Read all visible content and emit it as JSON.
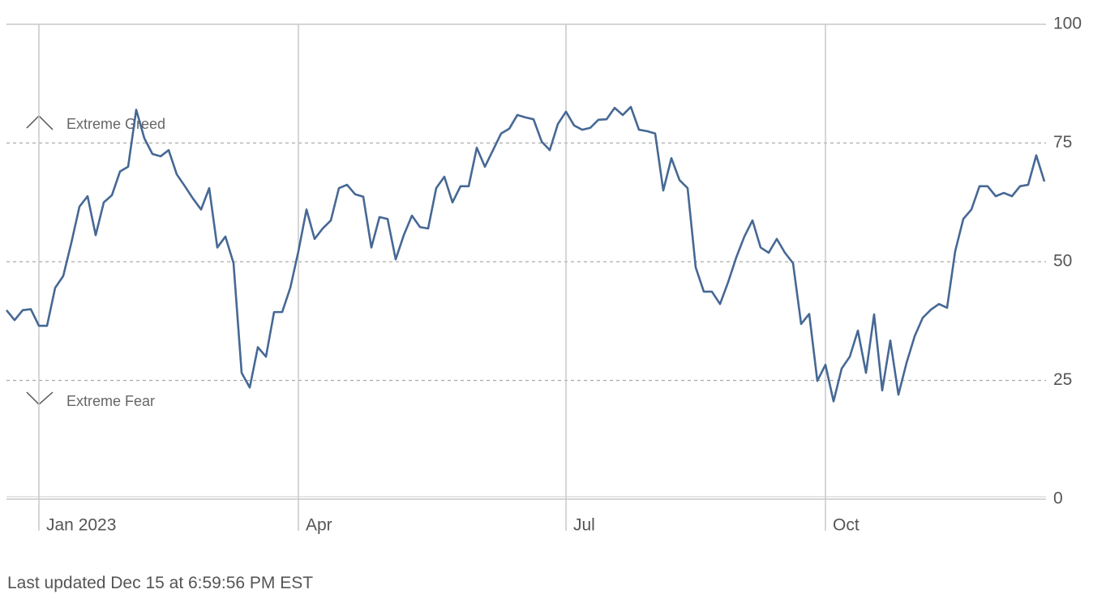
{
  "chart_data": {
    "type": "line",
    "categories": [
      null,
      null,
      null,
      null,
      "Jan 2023",
      null,
      null,
      null,
      null,
      null,
      null,
      null,
      null,
      null,
      null,
      null,
      null,
      null,
      null,
      null,
      null,
      null,
      null,
      null,
      null,
      null,
      null,
      null,
      null,
      null,
      null,
      null,
      null,
      null,
      null,
      null,
      "Apr",
      null,
      null,
      null,
      null,
      null,
      null,
      null,
      null,
      null,
      null,
      null,
      null,
      null,
      null,
      null,
      null,
      null,
      null,
      null,
      null,
      null,
      null,
      null,
      null,
      null,
      null,
      null,
      null,
      null,
      null,
      null,
      null,
      "Jul",
      null,
      null,
      null,
      null,
      null,
      null,
      null,
      null,
      null,
      null,
      null,
      null,
      null,
      null,
      null,
      null,
      null,
      null,
      null,
      null,
      null,
      null,
      null,
      null,
      null,
      null,
      null,
      null,
      null,
      null,
      null,
      "Oct",
      null,
      null,
      null,
      null,
      null,
      null,
      null,
      null,
      null,
      null,
      null,
      null,
      null,
      null,
      null,
      null,
      null,
      null,
      null,
      null,
      null,
      null,
      null,
      null,
      null,
      null,
      null
    ],
    "values": [
      39.8,
      37.7,
      39.8,
      40,
      36.5,
      36.5,
      44.5,
      47,
      54,
      61.6,
      63.8,
      55.6,
      62.5,
      64,
      69,
      70,
      82,
      76,
      72.7,
      72.2,
      73.5,
      68.4,
      65.9,
      63.3,
      61,
      65.5,
      53,
      55.3,
      49.7,
      26.6,
      23.5,
      32,
      30,
      39.4,
      39.4,
      44.5,
      52.2,
      61,
      54.8,
      57,
      58.7,
      65.5,
      66.2,
      64.2,
      63.7,
      53,
      59.4,
      59,
      50.5,
      55.6,
      59.7,
      57.3,
      57,
      65.5,
      67.9,
      62.5,
      65.9,
      65.9,
      74,
      70,
      73.5,
      77,
      78,
      80.9,
      80.4,
      80,
      75.3,
      73.5,
      79,
      81.6,
      78.7,
      77.8,
      78.2,
      79.9,
      80,
      82.4,
      80.9,
      82.6,
      77.8,
      77.5,
      77,
      65,
      71.8,
      67.2,
      65.5,
      48.8,
      43.7,
      43.7,
      41.1,
      45.7,
      50.9,
      55.3,
      58.7,
      53,
      51.9,
      54.8,
      51.9,
      49.7,
      36.9,
      39,
      24.9,
      28.3,
      20.6,
      27.5,
      30,
      35.5,
      26.6,
      38.9,
      22.9,
      33.4,
      22,
      28.7,
      34.3,
      38.2,
      39.9,
      41.1,
      40.3,
      52.2,
      59,
      61,
      65.9,
      65.9,
      63.8,
      64.5,
      63.8,
      65.9,
      66.2,
      72.4,
      66.9
    ],
    "color": "#466894",
    "ylim": [
      0,
      100
    ],
    "yticks": [
      0,
      25,
      50,
      75,
      100
    ],
    "grid": true,
    "annotations": [
      "Extreme Greed",
      "Extreme Fear"
    ]
  },
  "footer": "Last updated Dec 15 at 6:59:56 PM EST"
}
